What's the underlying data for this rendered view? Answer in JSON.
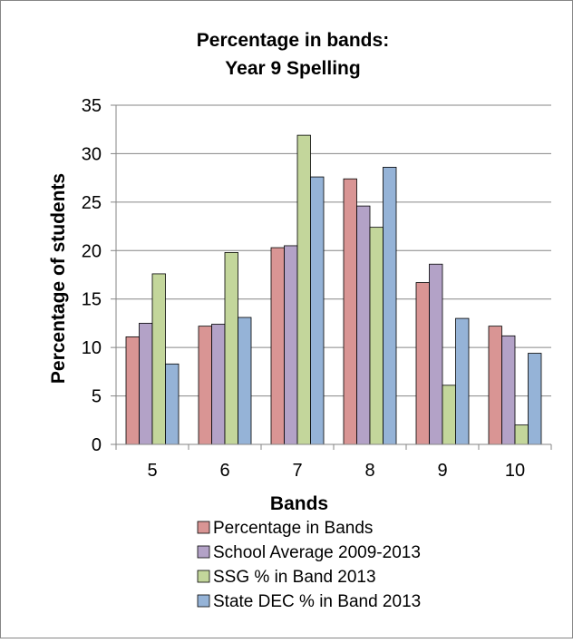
{
  "chart_data": {
    "type": "bar",
    "title_lines": [
      "Percentage in bands:",
      "Year 9 Spelling"
    ],
    "xlabel": "Bands",
    "ylabel": "Percentage of students",
    "categories": [
      "5",
      "6",
      "7",
      "8",
      "9",
      "10"
    ],
    "ylim": [
      0,
      35
    ],
    "yticks": [
      0,
      5,
      10,
      15,
      20,
      25,
      30,
      35
    ],
    "grid": true,
    "legend_position": "bottom",
    "series": [
      {
        "name": "Percentage in Bands",
        "color": "#d99594",
        "values": [
          11.1,
          12.2,
          20.3,
          27.4,
          16.7,
          12.2
        ]
      },
      {
        "name": "School Average 2009-2013",
        "color": "#b3a2c7",
        "values": [
          12.5,
          12.4,
          20.5,
          24.6,
          18.6,
          11.2
        ]
      },
      {
        "name": "SSG % in Band 2013",
        "color": "#c3d69b",
        "values": [
          17.6,
          19.8,
          31.9,
          22.4,
          6.1,
          2.0
        ]
      },
      {
        "name": "State DEC % in Band 2013",
        "color": "#95b3d7",
        "values": [
          8.3,
          13.1,
          27.6,
          28.6,
          13.0,
          9.4
        ]
      }
    ]
  }
}
